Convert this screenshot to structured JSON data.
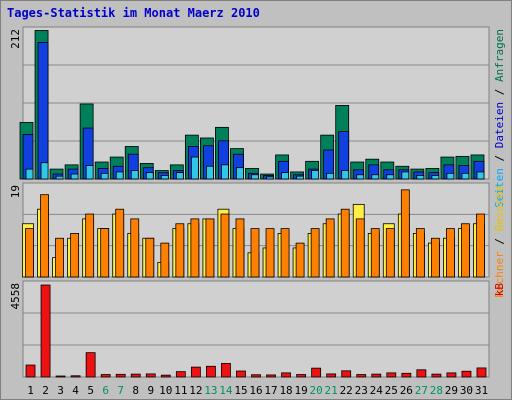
{
  "chart_data": {
    "type": "bar",
    "title": "Tages-Statistik im Monat Maerz 2010",
    "categories": [
      "1",
      "2",
      "3",
      "4",
      "5",
      "6",
      "7",
      "8",
      "9",
      "10",
      "11",
      "12",
      "13",
      "14",
      "15",
      "16",
      "17",
      "18",
      "19",
      "20",
      "21",
      "22",
      "23",
      "24",
      "25",
      "26",
      "27",
      "28",
      "29",
      "30",
      "31"
    ],
    "weekend_categories": [
      "6",
      "7",
      "13",
      "14",
      "20",
      "21",
      "27",
      "28"
    ],
    "panels": [
      {
        "name": "top",
        "axis_max_label": "212",
        "ylim": [
          0,
          212
        ],
        "side_label_parts": [
          {
            "text": "Seiten",
            "color": "#00aaff"
          },
          {
            "text": " / ",
            "color": "#000000"
          },
          {
            "text": "Dateien",
            "color": "#0000cc"
          },
          {
            "text": " / ",
            "color": "#000000"
          },
          {
            "text": "Anfragen",
            "color": "#007050"
          }
        ],
        "series": [
          {
            "name": "Anfragen",
            "color": "#00805a",
            "values": [
              80,
              210,
              14,
              20,
              106,
              24,
              31,
              46,
              22,
              12,
              20,
              62,
              58,
              73,
              43,
              15,
              7,
              34,
              10,
              25,
              62,
              104,
              24,
              28,
              24,
              18,
              14,
              15,
              31,
              32,
              34
            ]
          },
          {
            "name": "Dateien",
            "color": "#1040e0",
            "values": [
              63,
              193,
              7,
              14,
              72,
              15,
              18,
              35,
              16,
              9,
              12,
              46,
              47,
              54,
              35,
              8,
              5,
              25,
              6,
              14,
              41,
              67,
              13,
              20,
              13,
              13,
              10,
              9,
              20,
              19,
              25
            ]
          },
          {
            "name": "Seiten",
            "color": "#30c8e8",
            "values": [
              14,
              23,
              4,
              7,
              19,
              8,
              10,
              12,
              9,
              5,
              9,
              31,
              18,
              20,
              16,
              6,
              3,
              9,
              4,
              12,
              8,
              12,
              6,
              6,
              6,
              10,
              5,
              5,
              8,
              8,
              10
            ]
          }
        ]
      },
      {
        "name": "middle",
        "axis_max_label": "19",
        "ylim": [
          0,
          19
        ],
        "side_label_parts": [
          {
            "text": "Rechner",
            "color": "#ff8000"
          },
          {
            "text": " / ",
            "color": "#000000"
          },
          {
            "text": "Besuche",
            "color": "#e8c000"
          }
        ],
        "series": [
          {
            "name": "Besuche",
            "color": "#ffee44",
            "values": [
              11,
              14,
              4,
              8,
              12,
              10,
              13,
              9,
              8,
              3,
              10,
              11,
              12,
              14,
              10,
              5,
              6,
              9,
              6,
              9,
              11,
              13,
              15,
              9,
              11,
              13,
              9,
              7,
              8,
              10,
              11
            ]
          },
          {
            "name": "Rechner",
            "color": "#ff8000",
            "values": [
              10,
              17,
              8,
              9,
              13,
              10,
              14,
              12,
              8,
              7,
              11,
              12,
              12,
              13,
              12,
              10,
              10,
              10,
              7,
              10,
              12,
              14,
              12,
              10,
              10,
              18,
              10,
              8,
              10,
              11,
              13
            ]
          }
        ]
      },
      {
        "name": "bottom",
        "axis_max_label": "4558",
        "ylim": [
          0,
          4558
        ],
        "side_label_parts": [
          {
            "text": "kB",
            "color": "#cc0000"
          }
        ],
        "series": [
          {
            "name": "kB",
            "color": "#ee1111",
            "values": [
              580,
              4460,
              40,
              60,
              1180,
              120,
              130,
              140,
              150,
              90,
              260,
              480,
              520,
              660,
              290,
              110,
              100,
              200,
              120,
              430,
              150,
              300,
              120,
              140,
              200,
              180,
              350,
              140,
              200,
              280,
              440
            ]
          }
        ]
      }
    ]
  }
}
